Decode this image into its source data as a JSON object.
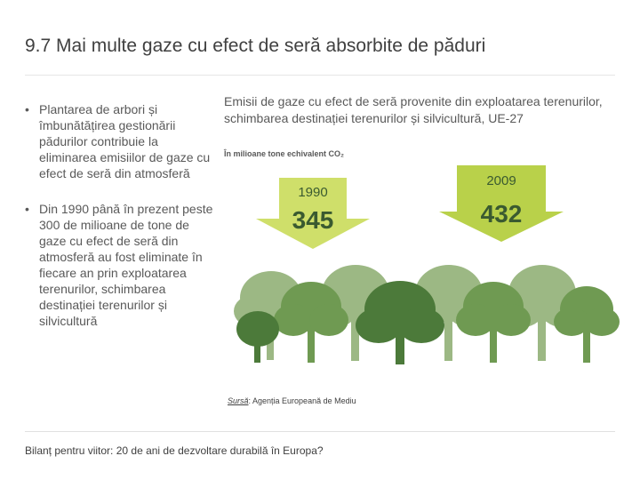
{
  "slide": {
    "title": "9.7 Mai multe gaze cu efect de seră absorbite de păduri",
    "bullets": [
      "Plantarea de arbori și îmbunătățirea gestionării pădurilor contribuie la eliminarea emisiilor de gaze cu efect de seră din atmosferă",
      "Din 1990 până în prezent peste 300 de milioane de tone de gaze cu efect de seră din atmosferă au fost eliminate în fiecare an prin exploatarea terenurilor, schimbarea destinației terenurilor și silvicultură"
    ],
    "bullet_symbol": "•",
    "footer": "Bilanț pentru viitor: 20 de ani de dezvoltare durabilă în Europa?"
  },
  "graphic": {
    "title": "Emisii de gaze cu efect de seră provenite din exploatarea terenurilor, schimbarea destinației terenurilor și silvicultură, UE-27",
    "unit": "În milioane tone echivalent CO₂",
    "arrows": [
      {
        "year": "1990",
        "value": "345"
      },
      {
        "year": "2009",
        "value": "432"
      }
    ],
    "source_label": "Sursă",
    "source_text": ": Agenția Europeană de Mediu",
    "colors": {
      "arrow_light": "#cfdf6a",
      "arrow_dark": "#b9d14a",
      "tree_dark": "#4c7a3a",
      "tree_mid": "#6f9a52",
      "tree_light": "#9cb884"
    }
  }
}
